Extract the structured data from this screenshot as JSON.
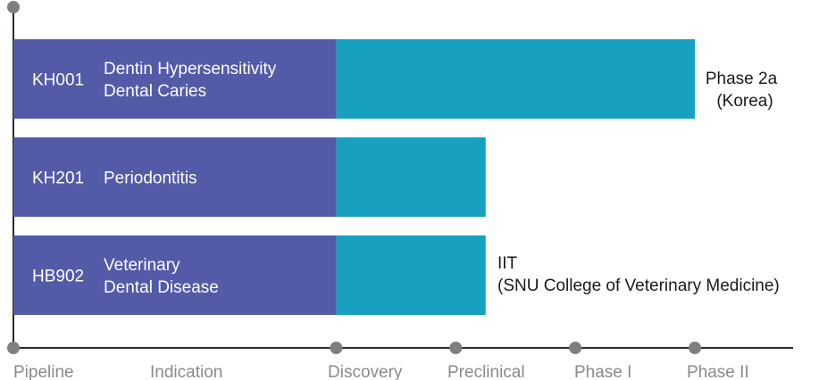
{
  "colors": {
    "pipeline_bar": "#535aa8",
    "progress_bar": "#17a0bf",
    "axis": "#2a2a2a",
    "axis_marker": "#7f7f7f",
    "stage_label": "#8a8a8a",
    "bar_text": "#ffffff",
    "status_text": "#1a1a1a"
  },
  "chart_data": {
    "type": "bar",
    "orientation": "horizontal",
    "stacked": true,
    "x_stages": [
      "Pipeline",
      "Indication",
      "Discovery",
      "Preclinical",
      "Phase I",
      "Phase II"
    ],
    "x_stage_positions": [
      0,
      1,
      2.7,
      3.7,
      4.7,
      5.7
    ],
    "markers_at": [
      0,
      2.7,
      3.7,
      4.7,
      5.7
    ],
    "rows": [
      {
        "code": "KH001",
        "indication": [
          "Dentin Hypersensitivity",
          "Dental Caries"
        ],
        "reached": 5.7,
        "status": [
          "Phase 2a",
          "(Korea)"
        ]
      },
      {
        "code": "KH201",
        "indication": [
          "Periodontitis"
        ],
        "reached": 3.95,
        "status": []
      },
      {
        "code": "HB902",
        "indication": [
          "Veterinary",
          "Dental Disease"
        ],
        "reached": 3.95,
        "status": [
          "IIT",
          "(SNU College of Veterinary Medicine)"
        ]
      }
    ]
  }
}
